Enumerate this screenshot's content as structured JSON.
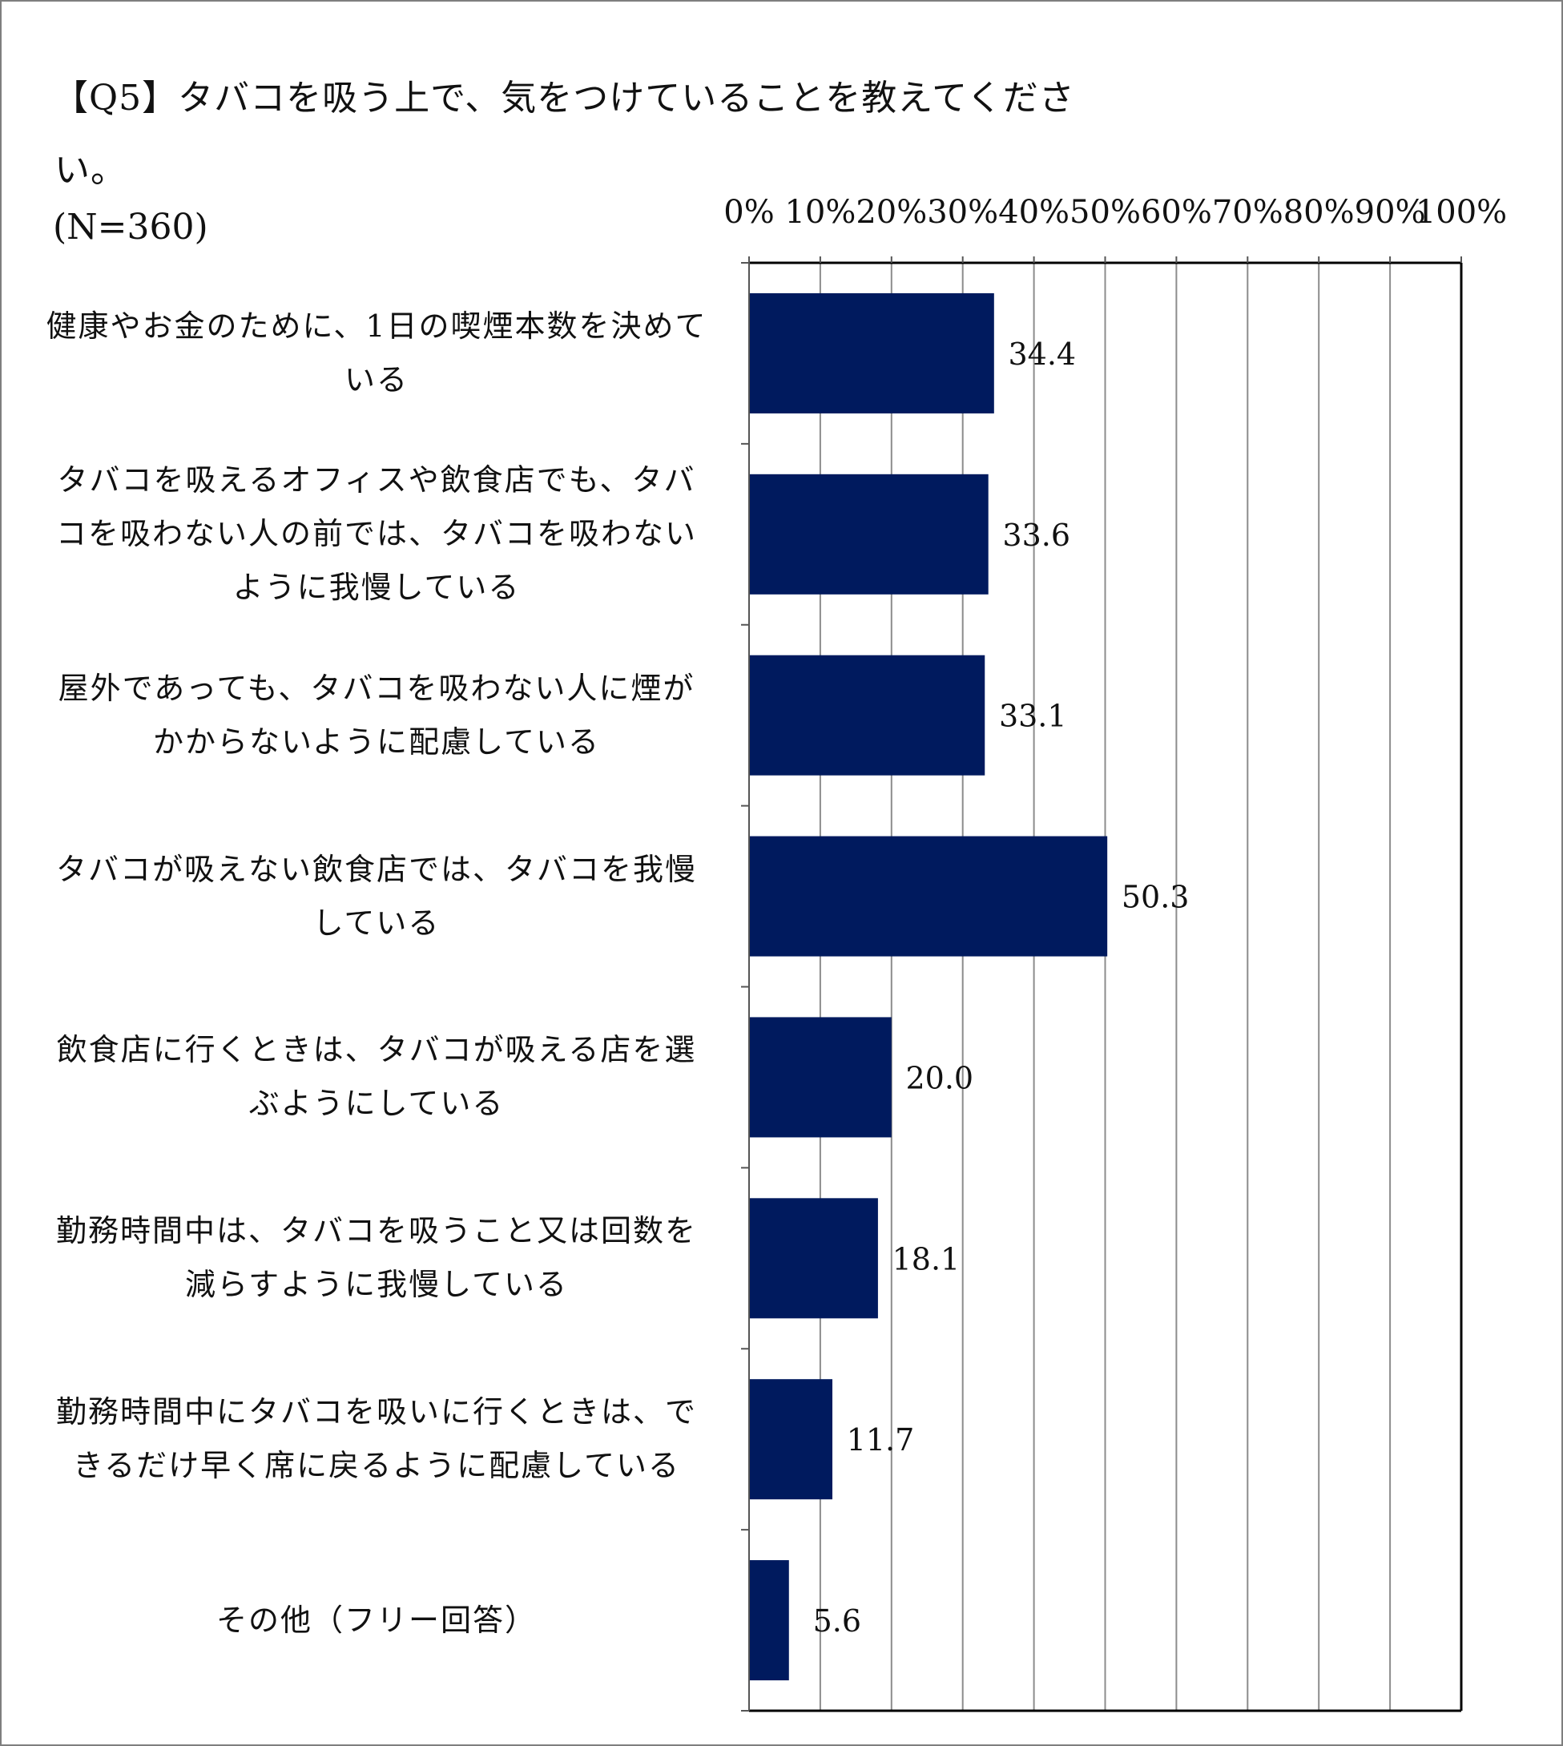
{
  "title": {
    "line1": "【Q5】タバコを吸う上で、気をつけていることを教えてくださ",
    "line2": "い。",
    "sample": "(N=360)"
  },
  "chart_data": {
    "type": "bar",
    "orientation": "horizontal",
    "categories": [
      [
        "健康やお金のために、1日の喫煙本数を決めて",
        "いる"
      ],
      [
        "タバコを吸えるオフィスや飲食店でも、タバ",
        "コを吸わない人の前では、タバコを吸わない",
        "ように我慢している"
      ],
      [
        "屋外であっても、タバコを吸わない人に煙が",
        "かからないように配慮している"
      ],
      [
        "タバコが吸えない飲食店では、タバコを我慢",
        "している"
      ],
      [
        "飲食店に行くときは、タバコが吸える店を選",
        "ぶようにしている"
      ],
      [
        "勤務時間中は、タバコを吸うこと又は回数を",
        "減らすように我慢している"
      ],
      [
        "勤務時間中にタバコを吸いに行くときは、で",
        "きるだけ早く席に戻るように配慮している"
      ],
      [
        "その他（フリー回答）"
      ]
    ],
    "values": [
      34.4,
      33.6,
      33.1,
      50.3,
      20.0,
      18.1,
      11.7,
      5.6
    ],
    "value_labels": [
      "34.4",
      "33.6",
      "33.1",
      "50.3",
      "20.0",
      "18.1",
      "11.7",
      "5.6"
    ],
    "x_ticks": [
      "0%",
      "10%",
      "20%",
      "30%",
      "40%",
      "50%",
      "60%",
      "70%",
      "80%",
      "90%",
      "100%"
    ],
    "xlim": [
      0,
      100
    ],
    "x_axis_position": "top",
    "grid": true,
    "bar_color": "#001a5e"
  }
}
